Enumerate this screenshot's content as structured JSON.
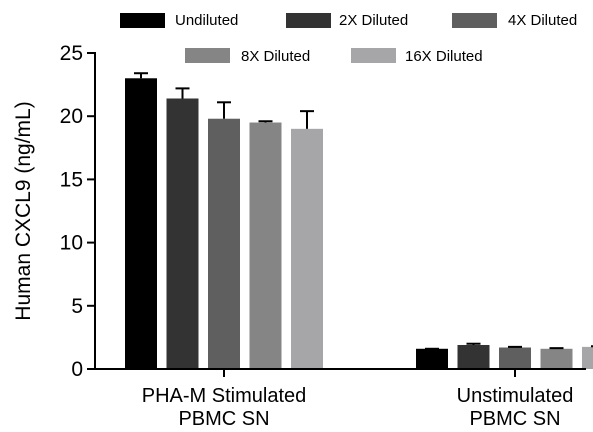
{
  "chart_data": {
    "type": "bar",
    "title": "",
    "xlabel": "",
    "ylabel": "Human CXCL9 (ng/mL)",
    "ylim": [
      0,
      25
    ],
    "yticks": [
      0,
      5,
      10,
      15,
      20,
      25
    ],
    "categories": [
      {
        "line1": "PHA-M Stimulated",
        "line2": "PBMC SN"
      },
      {
        "line1": "Unstimulated",
        "line2": "PBMC SN"
      }
    ],
    "legend_position": "top",
    "grid": false,
    "series": [
      {
        "name": "Undiluted",
        "color": "#000000",
        "values": [
          23.0,
          1.6
        ],
        "errors": [
          0.4,
          0.0
        ]
      },
      {
        "name": "2X Diluted",
        "color": "#333333",
        "values": [
          21.4,
          1.9
        ],
        "errors": [
          0.8,
          0.1
        ]
      },
      {
        "name": "4X Diluted",
        "color": "#5f5f5f",
        "values": [
          19.8,
          1.7
        ],
        "errors": [
          1.3,
          0.05
        ]
      },
      {
        "name": "8X Diluted",
        "color": "#858585",
        "values": [
          19.5,
          1.6
        ],
        "errors": [
          0.1,
          0.05
        ]
      },
      {
        "name": "16X Diluted",
        "color": "#a6a6a8",
        "values": [
          19.0,
          1.75
        ],
        "errors": [
          1.4,
          0.05
        ]
      }
    ]
  }
}
